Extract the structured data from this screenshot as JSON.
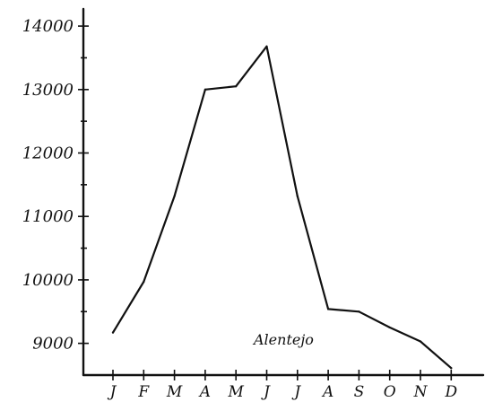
{
  "chart_data": {
    "type": "line",
    "title": "",
    "xlabel": "",
    "ylabel": "",
    "categories": [
      "J",
      "F",
      "M",
      "A",
      "M",
      "J",
      "J",
      "A",
      "S",
      "O",
      "N",
      "D"
    ],
    "series": [
      {
        "name": "",
        "values": [
          9170,
          9970,
          11320,
          13000,
          13050,
          13680,
          11320,
          9540,
          9500,
          9250,
          9030,
          8610
        ]
      }
    ],
    "annotation": "Alentejo",
    "yticks": [
      {
        "value": 9000,
        "label": "9000"
      },
      {
        "value": 10000,
        "label": "10000"
      },
      {
        "value": 11000,
        "label": "11000"
      },
      {
        "value": 12000,
        "label": "12000"
      },
      {
        "value": 13000,
        "label": "13000"
      },
      {
        "value": 14000,
        "label": "14000"
      }
    ],
    "ylim": [
      8330,
      14100
    ],
    "grid": false,
    "style": "hand-drawn",
    "line_color": "#111111"
  }
}
